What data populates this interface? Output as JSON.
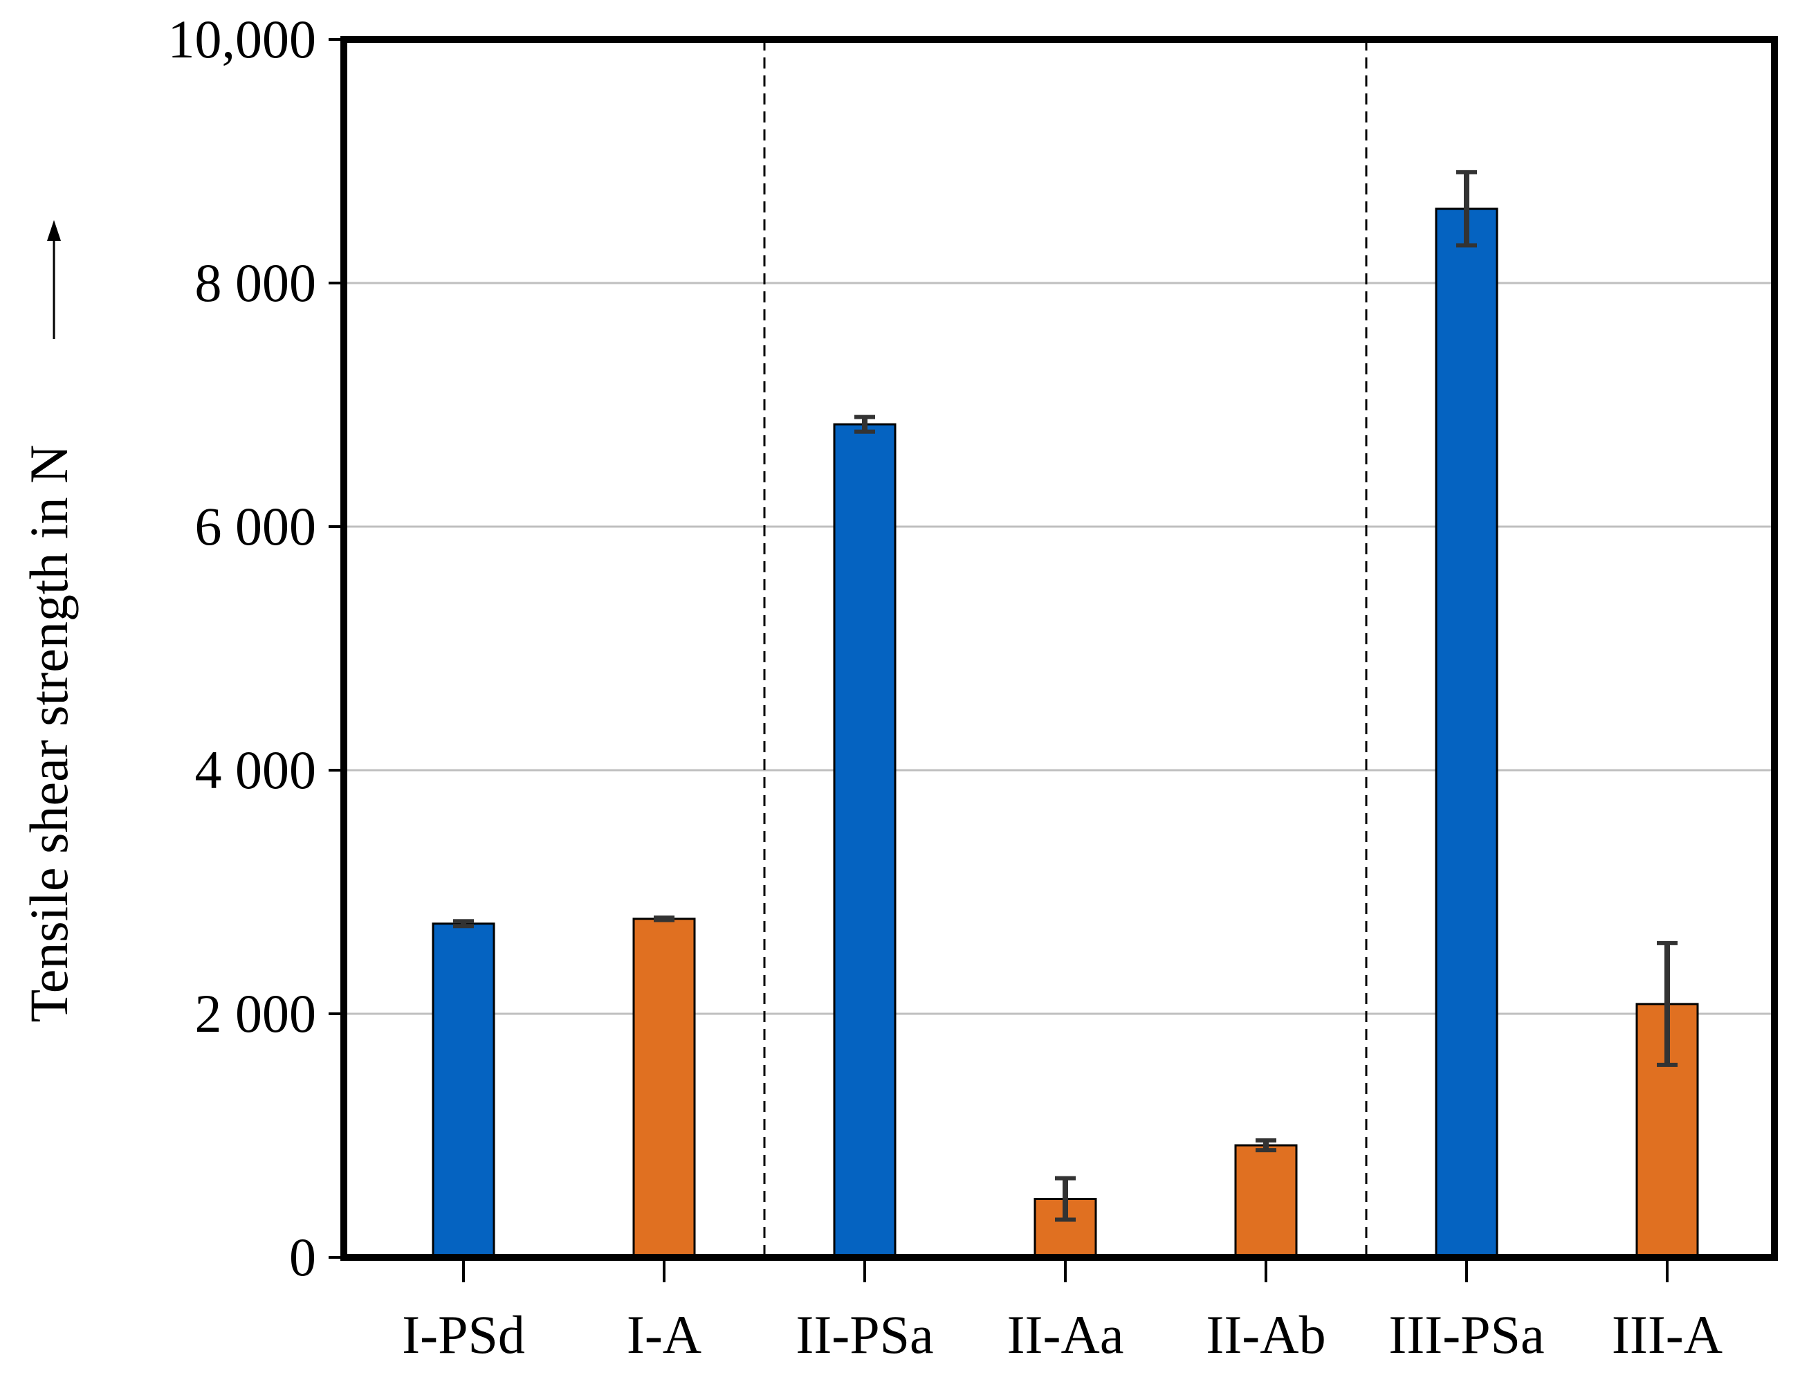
{
  "chart_data": {
    "type": "bar",
    "title": "",
    "xlabel": "",
    "ylabel": "Tensile shear strength in N",
    "ylim": [
      0,
      10000
    ],
    "yticks": [
      0,
      2000,
      4000,
      6000,
      8000,
      10000
    ],
    "ytick_labels": [
      "0",
      "2 000",
      "4 000",
      "6 000",
      "8 000",
      "10,000"
    ],
    "grid": "horizontal",
    "categories": [
      "I-PSd",
      "I-A",
      "II-PSa",
      "II-Aa",
      "II-Ab",
      "III-PSa",
      "III-A"
    ],
    "values": [
      2740,
      2780,
      6840,
      480,
      920,
      8610,
      2080
    ],
    "errors": [
      20,
      10,
      60,
      170,
      40,
      300,
      500
    ],
    "bar_colors": [
      "#0563c1",
      "#e07021",
      "#0563c1",
      "#e07021",
      "#e07021",
      "#0563c1",
      "#e07021"
    ],
    "group_separators_after": [
      1,
      4
    ],
    "colors": {
      "blue": "#0563c1",
      "orange": "#e07021",
      "error_bar": "#333333",
      "grid": "#bfbfbf",
      "axis": "#000000"
    }
  }
}
